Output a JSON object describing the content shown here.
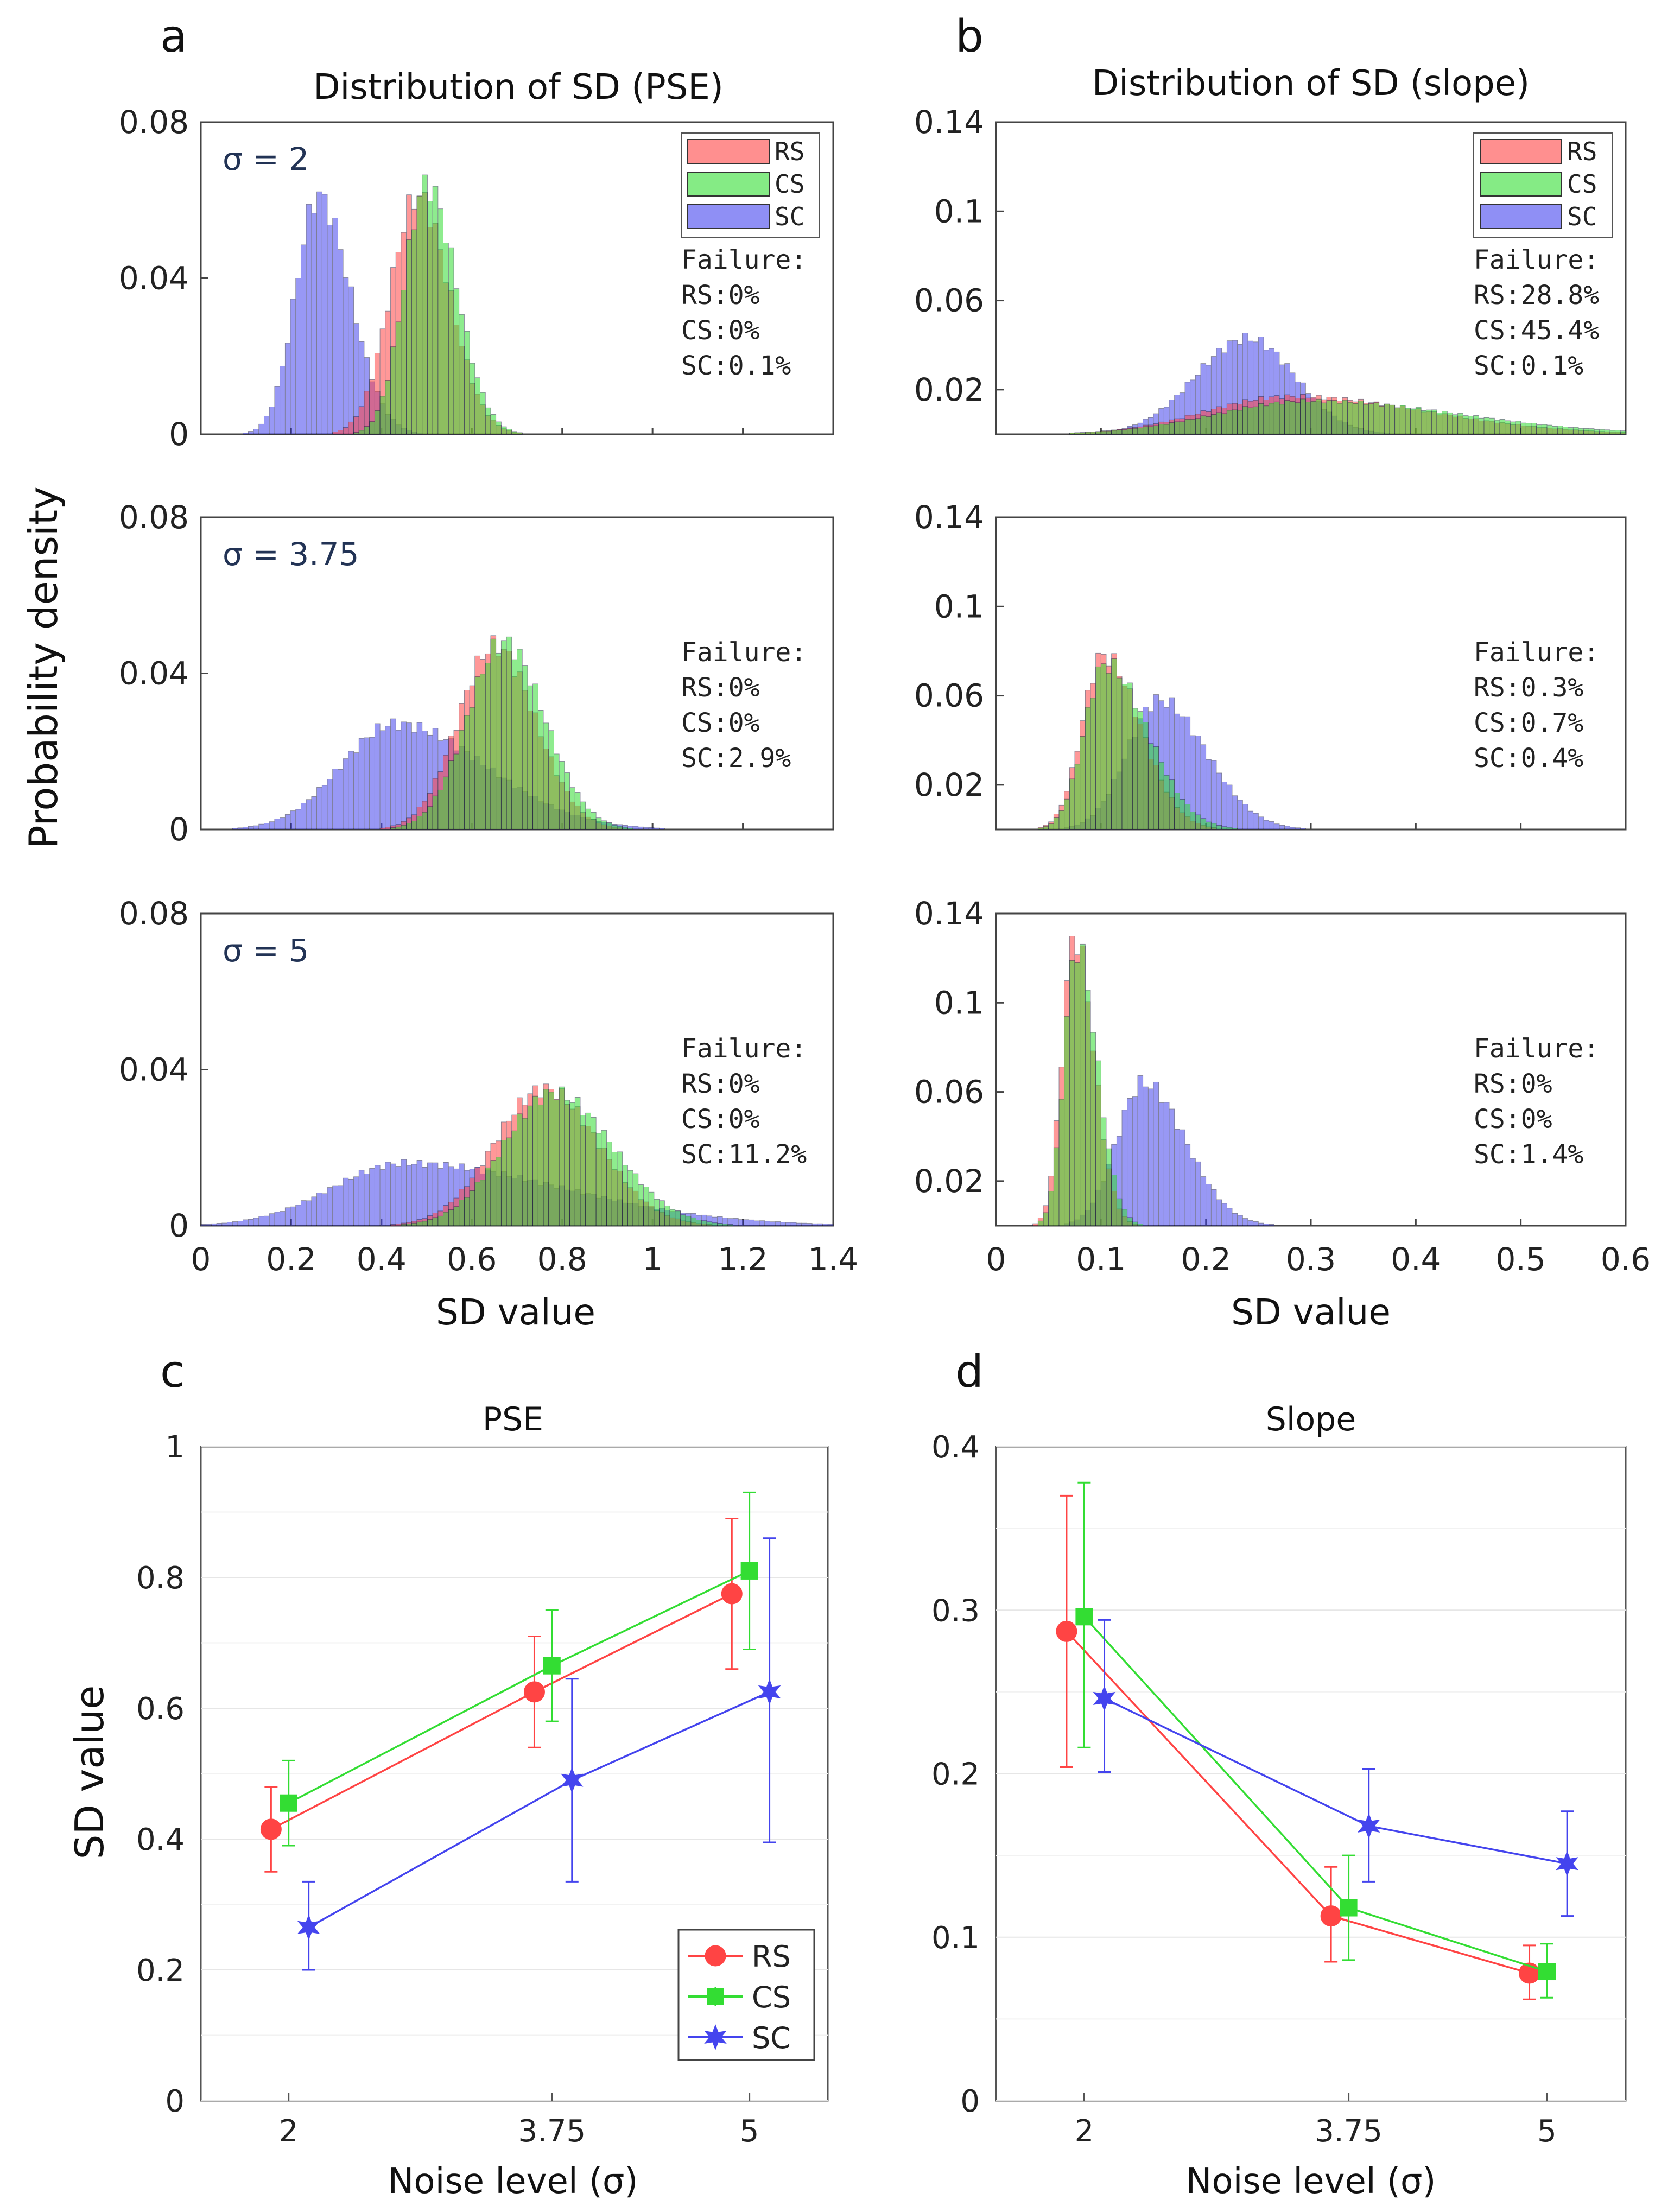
{
  "figure": {
    "panel_labels": [
      "a",
      "b",
      "c",
      "d"
    ],
    "a_title": "Distribution of SD (PSE)",
    "b_title": "Distribution of SD (slope)",
    "ylabel_top": "Probability density",
    "xlabel_top": "SD value",
    "c_title": "PSE",
    "d_title": "Slope",
    "ylabel_bottom": "SD value",
    "xlabel_bottom": "Noise level (σ)",
    "failure_label": "Failure:",
    "sigma_labels": [
      "σ = 2",
      "σ = 3.75",
      "σ = 5"
    ]
  },
  "colors": {
    "RS": "#ff4444",
    "CS": "#33dd33",
    "SC": "#4444ee"
  },
  "chart_data": [
    {
      "id": "a",
      "type": "histogram",
      "title": "Distribution of SD (PSE)",
      "xlabel": "SD value",
      "ylabel": "Probability density",
      "xlim": [
        0,
        1.4
      ],
      "ylim": [
        0,
        0.08
      ],
      "xticks": [
        "0",
        "0.2",
        "0.4",
        "0.6",
        "0.8",
        "1",
        "1.2",
        "1.4"
      ],
      "yticks": [
        "0",
        "0.04",
        "0.08"
      ],
      "legend": [
        "RS",
        "CS",
        "SC"
      ],
      "rows": [
        {
          "sigma": "σ = 2",
          "failures": [
            "RS:0%",
            "CS:0%",
            "SC:0.1%"
          ],
          "series": [
            {
              "name": "RS",
              "peak": 0.48,
              "height": 0.061,
              "wl": 0.06,
              "wr": 0.07
            },
            {
              "name": "CS",
              "peak": 0.5,
              "height": 0.064,
              "wl": 0.05,
              "wr": 0.065
            },
            {
              "name": "SC",
              "peak": 0.26,
              "height": 0.061,
              "wl": 0.05,
              "wr": 0.07
            }
          ]
        },
        {
          "sigma": "σ = 3.75",
          "failures": [
            "RS:0%",
            "CS:0%",
            "SC:2.9%"
          ],
          "series": [
            {
              "name": "RS",
              "peak": 0.65,
              "height": 0.047,
              "wl": 0.08,
              "wr": 0.09
            },
            {
              "name": "CS",
              "peak": 0.67,
              "height": 0.048,
              "wl": 0.08,
              "wr": 0.09
            },
            {
              "name": "SC",
              "peak": 0.43,
              "height": 0.027,
              "wl": 0.12,
              "wr": 0.2
            }
          ]
        },
        {
          "sigma": "σ = 5",
          "failures": [
            "RS:0%",
            "CS:0%",
            "SC:11.2%"
          ],
          "series": [
            {
              "name": "RS",
              "peak": 0.76,
              "height": 0.035,
              "wl": 0.11,
              "wr": 0.12
            },
            {
              "name": "CS",
              "peak": 0.78,
              "height": 0.034,
              "wl": 0.11,
              "wr": 0.13
            },
            {
              "name": "SC",
              "peak": 0.45,
              "height": 0.016,
              "wl": 0.16,
              "wr": 0.35
            }
          ]
        }
      ]
    },
    {
      "id": "b",
      "type": "histogram",
      "title": "Distribution of SD (slope)",
      "xlabel": "SD value",
      "xlim": [
        0,
        0.6
      ],
      "ylim": [
        0,
        0.14
      ],
      "xticks": [
        "0",
        "0.1",
        "0.2",
        "0.3",
        "0.4",
        "0.5",
        "0.6"
      ],
      "yticks": [
        "0.02",
        "0.06",
        "0.1",
        "0.14"
      ],
      "legend": [
        "RS",
        "CS",
        "SC"
      ],
      "rows": [
        {
          "failures": [
            "RS:28.8%",
            "CS:45.4%",
            "SC:0.1%"
          ],
          "series": [
            {
              "name": "RS",
              "peak": 0.28,
              "height": 0.017,
              "wl": 0.08,
              "wr": 0.13
            },
            {
              "name": "CS",
              "peak": 0.3,
              "height": 0.015,
              "wl": 0.09,
              "wr": 0.14
            },
            {
              "name": "SC",
              "peak": 0.24,
              "height": 0.043,
              "wl": 0.05,
              "wr": 0.045
            }
          ]
        },
        {
          "failures": [
            "RS:0.3%",
            "CS:0.7%",
            "SC:0.4%"
          ],
          "series": [
            {
              "name": "RS",
              "peak": 0.102,
              "height": 0.078,
              "wl": 0.02,
              "wr": 0.035
            },
            {
              "name": "CS",
              "peak": 0.104,
              "height": 0.074,
              "wl": 0.02,
              "wr": 0.04
            },
            {
              "name": "SC",
              "peak": 0.155,
              "height": 0.058,
              "wl": 0.03,
              "wr": 0.045
            }
          ]
        },
        {
          "failures": [
            "RS:0%",
            "CS:0%",
            "SC:1.4%"
          ],
          "series": [
            {
              "name": "RS",
              "peak": 0.075,
              "height": 0.13,
              "wl": 0.012,
              "wr": 0.018
            },
            {
              "name": "CS",
              "peak": 0.077,
              "height": 0.125,
              "wl": 0.012,
              "wr": 0.019
            },
            {
              "name": "SC",
              "peak": 0.14,
              "height": 0.064,
              "wl": 0.025,
              "wr": 0.04
            }
          ]
        }
      ]
    },
    {
      "id": "c",
      "type": "line",
      "title": "PSE",
      "xlabel": "Noise level (σ)",
      "ylabel": "SD value",
      "categories": [
        "2",
        "3.75",
        "5"
      ],
      "ylim": [
        0,
        1
      ],
      "yticks": [
        "0",
        "0.2",
        "0.4",
        "0.6",
        "0.8",
        "1"
      ],
      "legend": [
        "RS",
        "CS",
        "SC"
      ],
      "series": [
        {
          "name": "RS",
          "values": [
            0.415,
            0.625,
            0.775
          ],
          "err_low": [
            0.065,
            0.085,
            0.115
          ],
          "err_high": [
            0.065,
            0.085,
            0.115
          ]
        },
        {
          "name": "CS",
          "values": [
            0.455,
            0.665,
            0.81
          ],
          "err_low": [
            0.065,
            0.085,
            0.12
          ],
          "err_high": [
            0.065,
            0.085,
            0.12
          ]
        },
        {
          "name": "SC",
          "values": [
            0.265,
            0.49,
            0.625
          ],
          "err_low": [
            0.065,
            0.155,
            0.23
          ],
          "err_high": [
            0.07,
            0.155,
            0.235
          ]
        }
      ]
    },
    {
      "id": "d",
      "type": "line",
      "title": "Slope",
      "xlabel": "Noise level (σ)",
      "categories": [
        "2",
        "3.75",
        "5"
      ],
      "ylim": [
        0,
        0.4
      ],
      "yticks": [
        "0",
        "0.1",
        "0.2",
        "0.3",
        "0.4"
      ],
      "series": [
        {
          "name": "RS",
          "values": [
            0.287,
            0.113,
            0.078
          ],
          "err_low": [
            0.083,
            0.028,
            0.016
          ],
          "err_high": [
            0.083,
            0.03,
            0.017
          ]
        },
        {
          "name": "CS",
          "values": [
            0.296,
            0.118,
            0.079
          ],
          "err_low": [
            0.08,
            0.032,
            0.016
          ],
          "err_high": [
            0.082,
            0.032,
            0.017
          ]
        },
        {
          "name": "SC",
          "values": [
            0.246,
            0.168,
            0.145
          ],
          "err_low": [
            0.045,
            0.034,
            0.032
          ],
          "err_high": [
            0.048,
            0.035,
            0.032
          ]
        }
      ]
    }
  ]
}
